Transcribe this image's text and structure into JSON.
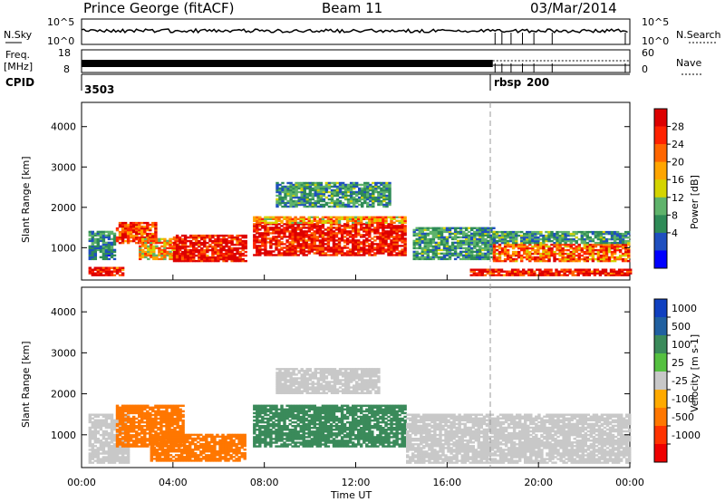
{
  "header": {
    "station": "Prince George (fitACF)",
    "beam": "Beam 11",
    "date": "03/Mar/2014"
  },
  "panels": {
    "nsky_label": "N.Sky",
    "nsearch_label": "N.Search",
    "freq_label_1": "Freq.",
    "freq_label_2": "[MHz]",
    "nave_label": "Nave",
    "cpid_label": "CPID",
    "cpid_1": "3503",
    "cpid_2": "rbsp",
    "cpid_2_num": "200",
    "noise_ticks": [
      "10^5",
      "10^0"
    ],
    "freq_ticks": [
      "18",
      "8"
    ],
    "nave_ticks": [
      "60",
      "0"
    ]
  },
  "colors": {
    "power_scale": [
      "#0000ff",
      "#1f4fbf",
      "#2e8b57",
      "#5fb36b",
      "#d4d400",
      "#ffa500",
      "#ff6600",
      "#ff2200",
      "#dd0000"
    ],
    "velocity_scale": [
      "#1040c0",
      "#2060a0",
      "#3a8a5a",
      "#55c040",
      "#c8c8c8",
      "#ffaa00",
      "#ff7700",
      "#ff3300",
      "#ee0000"
    ]
  },
  "chart_data": [
    {
      "type": "heatmap",
      "name": "power",
      "xlabel": "",
      "ylabel": "Slant Range [km]",
      "yticks": [
        "1000",
        "2000",
        "3000",
        "4000"
      ],
      "ylim": [
        200,
        4600
      ],
      "xlim": [
        0,
        24
      ],
      "colorbar_label": "Power [dB]",
      "colorbar_ticks": [
        "4",
        "8",
        "12",
        "16",
        "20",
        "24",
        "28"
      ],
      "colorbar_range": [
        0,
        32
      ],
      "regions": [
        {
          "t0": 0.3,
          "t1": 1.8,
          "r0": 300,
          "r1": 500,
          "value": 30
        },
        {
          "t0": 0.3,
          "t1": 1.5,
          "r0": 700,
          "r1": 1400,
          "value": 8
        },
        {
          "t0": 1.5,
          "t1": 3.2,
          "r0": 1100,
          "r1": 1600,
          "value": 26
        },
        {
          "t0": 2.5,
          "t1": 4.2,
          "r0": 700,
          "r1": 1200,
          "value": 20
        },
        {
          "t0": 4.0,
          "t1": 7.2,
          "r0": 650,
          "r1": 1300,
          "value": 30
        },
        {
          "t0": 7.5,
          "t1": 14.2,
          "r0": 800,
          "r1": 1600,
          "value": 30
        },
        {
          "t0": 7.5,
          "t1": 14.2,
          "r0": 1600,
          "r1": 1750,
          "value": 20
        },
        {
          "t0": 8.5,
          "t1": 13.5,
          "r0": 2000,
          "r1": 2600,
          "value": 10
        },
        {
          "t0": 14.5,
          "t1": 18.0,
          "r0": 700,
          "r1": 1500,
          "value": 10
        },
        {
          "t0": 17.0,
          "t1": 24.0,
          "r0": 300,
          "r1": 450,
          "value": 30
        },
        {
          "t0": 18.0,
          "t1": 24.0,
          "r0": 650,
          "r1": 1100,
          "value": 24
        },
        {
          "t0": 18.0,
          "t1": 24.0,
          "r0": 1100,
          "r1": 1400,
          "value": 10
        }
      ]
    },
    {
      "type": "heatmap",
      "name": "velocity",
      "xlabel": "Time UT",
      "ylabel": "Slant Range [km]",
      "yticks": [
        "1000",
        "2000",
        "3000",
        "4000"
      ],
      "ylim": [
        200,
        4600
      ],
      "xlim": [
        0,
        24
      ],
      "xticks": [
        "00:00",
        "04:00",
        "08:00",
        "12:00",
        "16:00",
        "20:00",
        "00:00"
      ],
      "colorbar_label": "Velocity [m s-1]",
      "colorbar_ticks": [
        "1000",
        "500",
        "100",
        "25",
        "-25",
        "-100",
        "-500",
        "-1000"
      ],
      "regions": [
        {
          "t0": 0.3,
          "t1": 2.0,
          "r0": 300,
          "r1": 1500,
          "value": 0
        },
        {
          "t0": 1.5,
          "t1": 4.5,
          "r0": 700,
          "r1": 1700,
          "value": -300
        },
        {
          "t0": 3.0,
          "t1": 7.2,
          "r0": 350,
          "r1": 1000,
          "value": -400
        },
        {
          "t0": 7.5,
          "t1": 14.2,
          "r0": 700,
          "r1": 1700,
          "value": 200
        },
        {
          "t0": 8.5,
          "t1": 13.0,
          "r0": 2000,
          "r1": 2600,
          "value": 0
        },
        {
          "t0": 14.2,
          "t1": 24.0,
          "r0": 300,
          "r1": 1500,
          "value": 0
        }
      ]
    }
  ]
}
